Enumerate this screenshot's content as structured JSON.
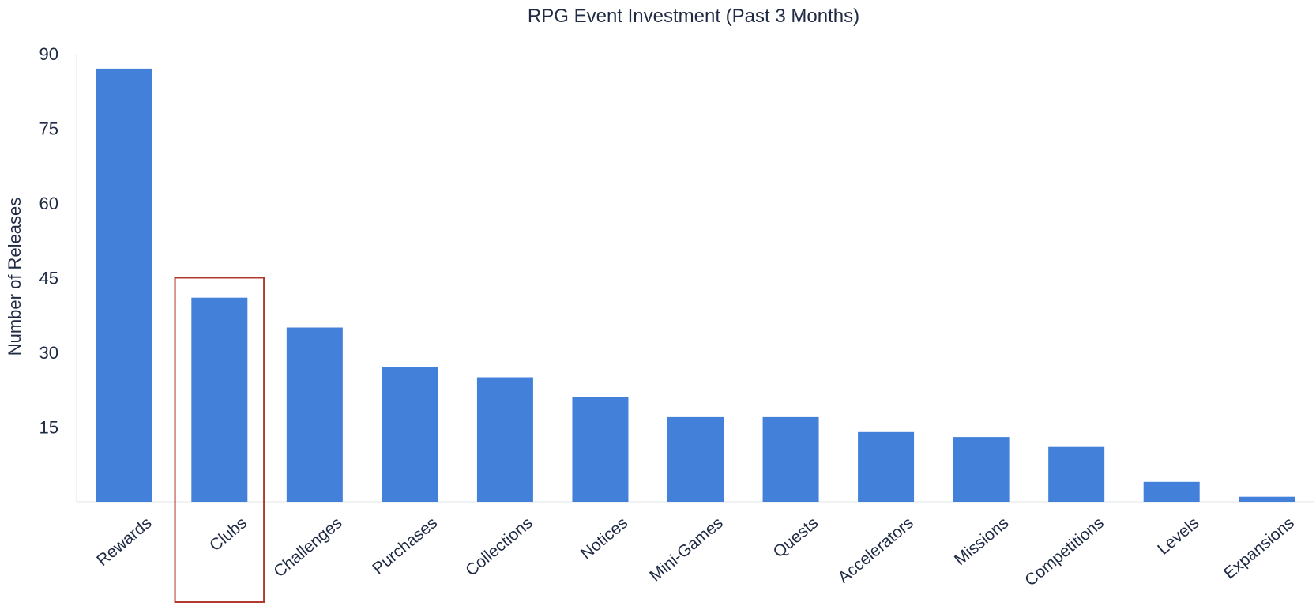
{
  "chart_data": {
    "type": "bar",
    "title": "RPG Event Investment (Past 3 Months)",
    "xlabel": "",
    "ylabel": "Number of Releases",
    "ylim": [
      0,
      90
    ],
    "yticks": [
      15,
      30,
      45,
      60,
      75,
      90
    ],
    "grid": false,
    "legend": "none",
    "categories": [
      "Rewards",
      "Clubs",
      "Challenges",
      "Purchases",
      "Collections",
      "Notices",
      "Mini-Games",
      "Quests",
      "Accelerators",
      "Missions",
      "Competitions",
      "Levels",
      "Expansions"
    ],
    "values": [
      87,
      41,
      35,
      27,
      25,
      21,
      17,
      17,
      14,
      13,
      11,
      4,
      1
    ],
    "bar_color": "#4380d9",
    "highlight": {
      "category": "Clubs",
      "ymax": 45,
      "color": "#b03a2e"
    }
  }
}
